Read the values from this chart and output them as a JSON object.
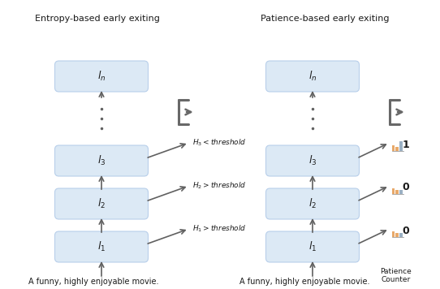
{
  "title_left": "Entropy-based early exiting",
  "title_right": "Patience-based early exiting",
  "box_color": "#dce9f5",
  "box_edge_color": "#b8cfea",
  "arrow_color": "#606060",
  "text_color": "#1a1a1a",
  "caption": "A funny, highly enjoyable movie.",
  "bg_color": "#ffffff",
  "entropy_labels": [
    "$H_1 > threshold$",
    "$H_2 > threshold$",
    "$H_3 < threshold$"
  ],
  "patience_values": [
    "0",
    "0",
    "1"
  ],
  "bar_colors_orange": "#e8a96a",
  "bar_colors_gray": "#9ab0c4",
  "exit_icon_color": "#686868"
}
